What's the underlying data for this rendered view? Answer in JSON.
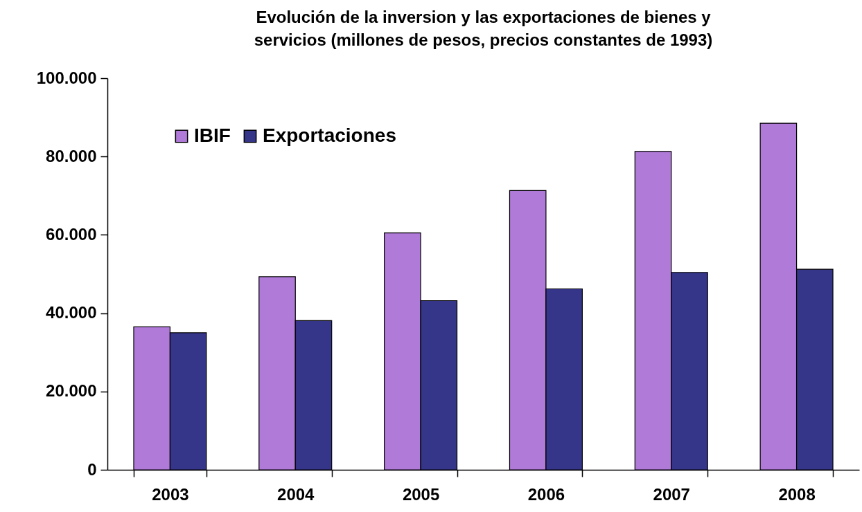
{
  "chart_data": {
    "type": "bar",
    "title": "Evolución de la inversion y las exportaciones de bienes y\nservicios (millones de pesos, precios constantes de 1993)",
    "categories": [
      "2003",
      "2004",
      "2005",
      "2006",
      "2007",
      "2008"
    ],
    "series": [
      {
        "name": "IBIF",
        "color": "#b07ad8",
        "values": [
          36500,
          49300,
          60500,
          71300,
          81300,
          88500
        ]
      },
      {
        "name": "Exportaciones",
        "color": "#35358a",
        "values": [
          35000,
          38100,
          43200,
          46200,
          50400,
          51200
        ]
      }
    ],
    "ylim": [
      0,
      100000
    ],
    "yticks": [
      0,
      {
        "value": 20000,
        "label": "20.000"
      },
      {
        "value": 40000,
        "label": "40.000"
      },
      {
        "value": 60000,
        "label": "60.000"
      },
      {
        "value": 80000,
        "label": "80.000"
      },
      {
        "value": 100000,
        "label": "100.000"
      }
    ],
    "grid": false,
    "legend": "top left"
  }
}
